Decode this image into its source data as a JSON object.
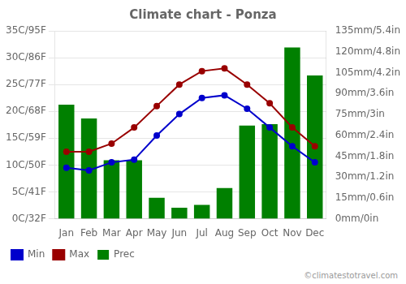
{
  "chart_data": {
    "type": "bar",
    "title": "Climate chart - Ponza",
    "categories": [
      "Jan",
      "Feb",
      "Mar",
      "Apr",
      "May",
      "Jun",
      "Jul",
      "Aug",
      "Sep",
      "Oct",
      "Nov",
      "Dec"
    ],
    "series": [
      {
        "name": "Prec",
        "type": "bar",
        "axis": "y2",
        "color": "#008000",
        "values": [
          82,
          72,
          42,
          42,
          15,
          8,
          10,
          22,
          67,
          68,
          123,
          103
        ]
      },
      {
        "name": "Min",
        "type": "line",
        "color": "#0000cc",
        "marker": "circle",
        "values": [
          9.5,
          9.0,
          10.5,
          11.0,
          15.5,
          19.5,
          22.5,
          23.0,
          20.5,
          17.0,
          13.5,
          10.5
        ]
      },
      {
        "name": "Max",
        "type": "line",
        "color": "#990000",
        "marker": "circle",
        "values": [
          12.5,
          12.5,
          14.0,
          17.0,
          21.0,
          25.0,
          27.5,
          28.0,
          25.0,
          21.5,
          17.0,
          13.5
        ]
      }
    ],
    "ylim": [
      0,
      35
    ],
    "yticks": [
      {
        "value": 0,
        "label": "0C/32F"
      },
      {
        "value": 5,
        "label": "5C/41F"
      },
      {
        "value": 10,
        "label": "10C/50F"
      },
      {
        "value": 15,
        "label": "15C/59F"
      },
      {
        "value": 20,
        "label": "20C/68F"
      },
      {
        "value": 25,
        "label": "25C/77F"
      },
      {
        "value": 30,
        "label": "30C/86F"
      },
      {
        "value": 35,
        "label": "35C/95F"
      }
    ],
    "y2lim": [
      0,
      135
    ],
    "y2ticks": [
      {
        "value": 0,
        "label": "0mm/0in"
      },
      {
        "value": 15,
        "label": "15mm/0.6in"
      },
      {
        "value": 30,
        "label": "30mm/1.2in"
      },
      {
        "value": 45,
        "label": "45mm/1.8in"
      },
      {
        "value": 60,
        "label": "60mm/2.4in"
      },
      {
        "value": 75,
        "label": "75mm/3in"
      },
      {
        "value": 90,
        "label": "90mm/3.6in"
      },
      {
        "value": 105,
        "label": "105mm/4.2in"
      },
      {
        "value": 120,
        "label": "120mm/4.8in"
      },
      {
        "value": 135,
        "label": "135mm/5.4in"
      }
    ],
    "grid": true,
    "legend": "lower left",
    "annotations": [
      "©climatestotravel.com"
    ]
  }
}
